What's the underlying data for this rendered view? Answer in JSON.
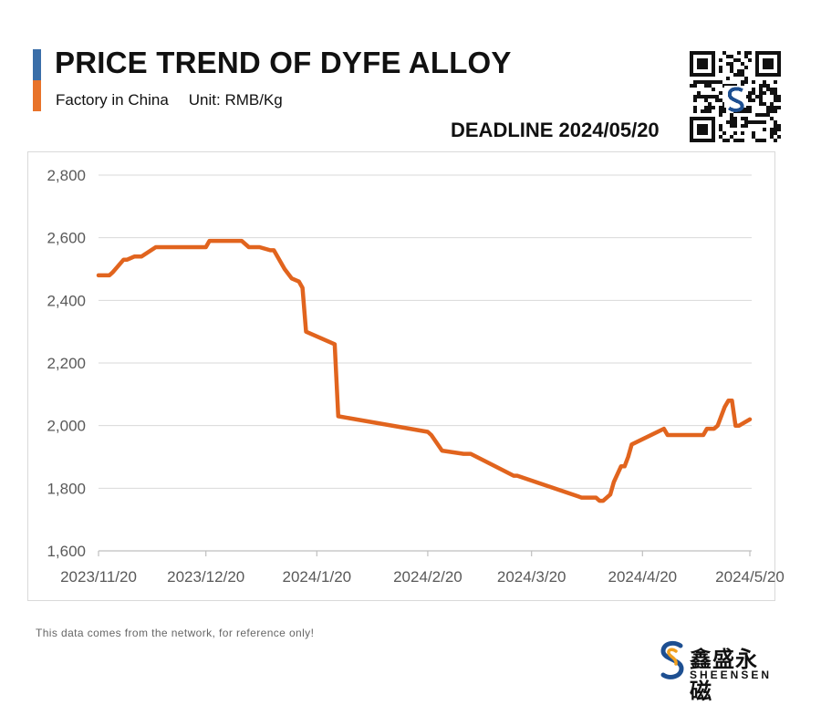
{
  "header": {
    "title": "PRICE TREND OF DYFE ALLOY",
    "subtitle_left": "Factory in China",
    "subtitle_right": "Unit: RMB/Kg",
    "deadline": "DEADLINE 2024/05/20"
  },
  "footer": {
    "note": "This data comes from the network, for reference only!",
    "brand_cn": "鑫盛永磁",
    "brand_en": "SHEENSEN"
  },
  "colors": {
    "line": "#e1641e",
    "accent_top": "#3a6ea8",
    "accent_bottom": "#e8732a",
    "grid": "#d9d9d9"
  },
  "icons": {
    "qr": "qr-code-icon",
    "logo": "sheensen-logo-icon"
  },
  "chart_data": {
    "type": "line",
    "title": "PRICE TREND OF DYFE ALLOY",
    "xlabel": "",
    "ylabel": "",
    "ylim": [
      1600,
      2800
    ],
    "xlim": [
      "2023-11-20",
      "2024-05-20"
    ],
    "yticks": [
      1600,
      1800,
      2000,
      2200,
      2400,
      2600,
      2800
    ],
    "ytick_labels": [
      "1,600",
      "1,800",
      "2,000",
      "2,200",
      "2,400",
      "2,600",
      "2,800"
    ],
    "xticks": [
      "2023-11-20",
      "2023-12-20",
      "2024-01-20",
      "2024-02-20",
      "2024-03-20",
      "2024-04-20",
      "2024-05-20"
    ],
    "xtick_labels": [
      "2023/11/20",
      "2023/12/20",
      "2024/1/20",
      "2024/2/20",
      "2024/3/20",
      "2024/4/20",
      "2024/5/20"
    ],
    "grid": "horizontal",
    "series": [
      {
        "x": [
          "2023-11-20",
          "2023-11-23",
          "2023-11-24",
          "2023-11-27",
          "2023-11-28",
          "2023-11-30",
          "2023-12-02",
          "2023-12-06",
          "2023-12-07",
          "2023-12-20",
          "2023-12-21",
          "2023-12-28",
          "2023-12-29",
          "2023-12-30",
          "2024-01-01",
          "2024-01-04",
          "2024-01-07",
          "2024-01-08",
          "2024-01-11",
          "2024-01-13",
          "2024-01-15",
          "2024-01-16",
          "2024-01-17",
          "2024-01-25",
          "2024-01-26",
          "2024-02-20",
          "2024-02-21",
          "2024-02-24",
          "2024-03-01",
          "2024-03-02",
          "2024-03-03",
          "2024-03-15",
          "2024-03-16",
          "2024-04-03",
          "2024-04-04",
          "2024-04-07",
          "2024-04-08",
          "2024-04-09",
          "2024-04-11",
          "2024-04-12",
          "2024-04-14",
          "2024-04-15",
          "2024-04-16",
          "2024-04-17",
          "2024-04-26",
          "2024-04-27",
          "2024-05-06",
          "2024-05-07",
          "2024-05-08",
          "2024-05-09",
          "2024-05-10",
          "2024-05-11",
          "2024-05-13",
          "2024-05-14",
          "2024-05-15",
          "2024-05-16",
          "2024-05-17",
          "2024-05-20"
        ],
        "y": [
          2480,
          2480,
          2490,
          2530,
          2530,
          2540,
          2540,
          2570,
          2570,
          2570,
          2590,
          2590,
          2590,
          2590,
          2570,
          2570,
          2560,
          2560,
          2500,
          2470,
          2460,
          2440,
          2300,
          2260,
          2030,
          1980,
          1970,
          1920,
          1910,
          1910,
          1910,
          1840,
          1840,
          1770,
          1770,
          1770,
          1760,
          1760,
          1780,
          1820,
          1870,
          1870,
          1900,
          1940,
          1990,
          1970,
          1970,
          1970,
          1990,
          1990,
          1990,
          2000,
          2060,
          2080,
          2080,
          2000,
          2000,
          2020
        ]
      }
    ]
  }
}
